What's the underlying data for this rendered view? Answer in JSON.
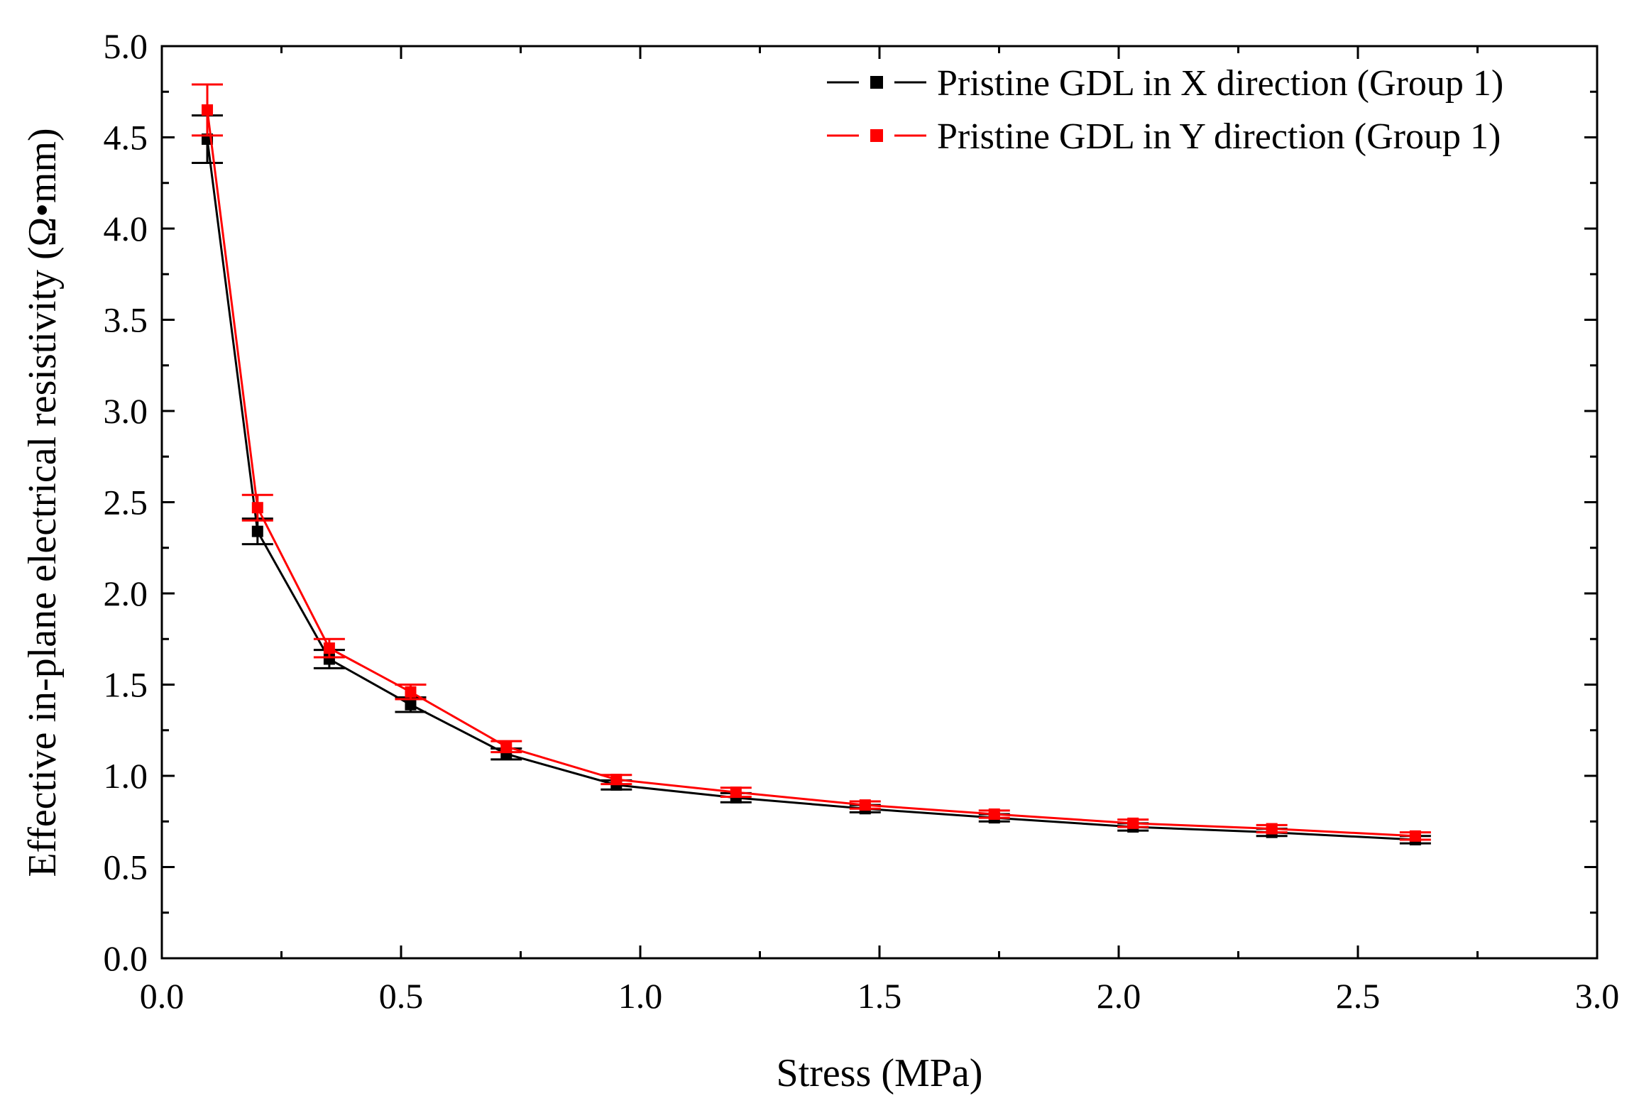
{
  "chart_data": {
    "type": "line",
    "title": "",
    "xlabel": "Stress (MPa)",
    "ylabel": "Effective in-plane electrical resistivity (Ω•mm)",
    "xlim": [
      0.0,
      3.0
    ],
    "ylim": [
      0.0,
      5.0
    ],
    "x_ticks": [
      "0.0",
      "0.5",
      "1.0",
      "1.5",
      "2.0",
      "2.5",
      "3.0"
    ],
    "y_ticks": [
      "0.0",
      "0.5",
      "1.0",
      "1.5",
      "2.0",
      "2.5",
      "3.0",
      "3.5",
      "4.0",
      "4.5",
      "5.0"
    ],
    "legend_position": "top-right",
    "series": [
      {
        "name": "Pristine GDL in X direction (Group 1)",
        "color": "#000000",
        "marker": "square",
        "x": [
          0.095,
          0.2,
          0.35,
          0.52,
          0.72,
          0.95,
          1.2,
          1.47,
          1.74,
          2.03,
          2.32,
          2.62
        ],
        "values": [
          4.49,
          2.34,
          1.64,
          1.39,
          1.12,
          0.95,
          0.88,
          0.82,
          0.77,
          0.72,
          0.69,
          0.65
        ],
        "errors": [
          0.13,
          0.07,
          0.05,
          0.04,
          0.03,
          0.025,
          0.025,
          0.02,
          0.02,
          0.02,
          0.02,
          0.02
        ]
      },
      {
        "name": "Pristine GDL in Y direction (Group 1)",
        "color": "#ff0000",
        "marker": "square",
        "x": [
          0.095,
          0.2,
          0.35,
          0.52,
          0.72,
          0.95,
          1.2,
          1.47,
          1.74,
          2.03,
          2.32,
          2.62
        ],
        "values": [
          4.65,
          2.47,
          1.7,
          1.46,
          1.16,
          0.98,
          0.91,
          0.84,
          0.79,
          0.74,
          0.71,
          0.67
        ],
        "errors": [
          0.14,
          0.07,
          0.05,
          0.04,
          0.03,
          0.025,
          0.025,
          0.02,
          0.02,
          0.02,
          0.02,
          0.02
        ]
      }
    ]
  }
}
